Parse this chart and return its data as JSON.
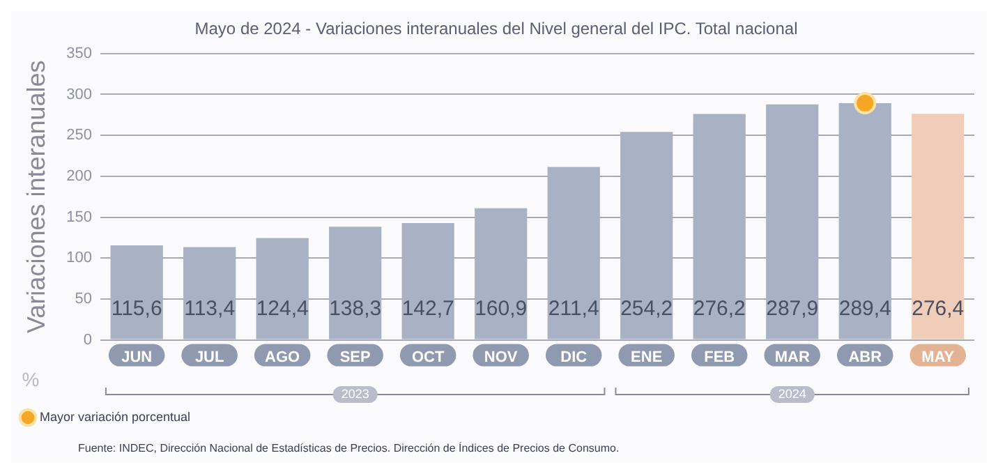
{
  "chart_data": {
    "type": "bar",
    "title": "Mayo de 2024 - Variaciones interanuales del Nivel general del IPC. Total nacional",
    "ylabel": "Variaciones interanuales",
    "categories": [
      "JUN",
      "JUL",
      "AGO",
      "SEP",
      "OCT",
      "NOV",
      "DIC",
      "ENE",
      "FEB",
      "MAR",
      "ABR",
      "MAY"
    ],
    "series": [
      {
        "values": [
          115.6,
          113.4,
          124.4,
          138.3,
          142.7,
          160.9,
          211.4,
          254.2,
          276.2,
          287.9,
          289.4,
          276.4
        ],
        "colors": [
          "#a9b2c5",
          "#a9b2c5",
          "#a9b2c5",
          "#a9b2c5",
          "#a9b2c5",
          "#a9b2c5",
          "#a9b2c5",
          "#a9b2c5",
          "#a9b2c5",
          "#a9b2c5",
          "#a9b2c5",
          "#efcdb8"
        ],
        "value_labels": [
          "115,6",
          "113,4",
          "124,4",
          "138,3",
          "142,7",
          "160,9",
          "211,4",
          "254,2",
          "276,2",
          "287,9",
          "289,4",
          "276,4"
        ]
      },
      {
        "type": "scatter",
        "name": "Mayor variación porcentual",
        "color": "#f5a623",
        "x": [
          "ABR"
        ],
        "values": [
          289.4
        ]
      }
    ],
    "ylim": [
      0,
      350
    ],
    "yticks": [
      0,
      50,
      100,
      150,
      200,
      250,
      300,
      350
    ],
    "grid": "y",
    "legend": "bottom left",
    "annotations": [
      "%",
      "2023",
      "2024",
      "Fuente: INDEC, Dirección Nacional de Estadísticas de Precios. Dirección de Índices de Precios de Consumo."
    ]
  }
}
